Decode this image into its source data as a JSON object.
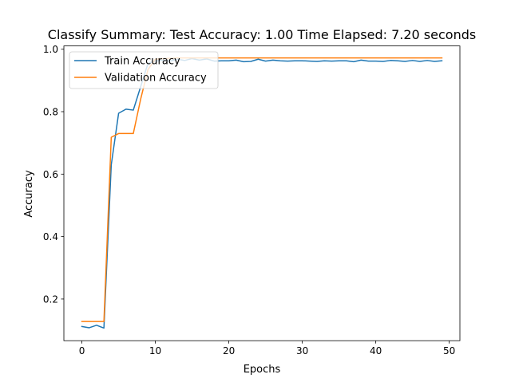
{
  "chart_data": {
    "type": "line",
    "title": "Classify Summary: Test Accuracy: 1.00 Time Elapsed: 7.20 seconds",
    "xlabel": "Epochs",
    "ylabel": "Accuracy",
    "xlim": [
      -2.45,
      51.45
    ],
    "ylim": [
      0.0665,
      1.0105
    ],
    "xticks": [
      0,
      10,
      20,
      30,
      40,
      50
    ],
    "yticks": [
      0.2,
      0.4,
      0.6,
      0.8,
      1.0
    ],
    "ytick_labels": [
      "0.2",
      "0.4",
      "0.6",
      "0.8",
      "1.0"
    ],
    "grid": false,
    "legend_position": "top-left",
    "x": [
      0,
      1,
      2,
      3,
      4,
      5,
      6,
      7,
      8,
      9,
      10,
      11,
      12,
      13,
      14,
      15,
      16,
      17,
      18,
      19,
      20,
      21,
      22,
      23,
      24,
      25,
      26,
      27,
      28,
      29,
      30,
      31,
      32,
      33,
      34,
      35,
      36,
      37,
      38,
      39,
      40,
      41,
      42,
      43,
      44,
      45,
      46,
      47,
      48,
      49
    ],
    "series": [
      {
        "name": "Train Accuracy",
        "color": "#1f77b4",
        "values": [
          0.112,
          0.108,
          0.116,
          0.107,
          0.63,
          0.795,
          0.808,
          0.805,
          0.88,
          0.955,
          0.962,
          0.965,
          0.962,
          0.968,
          0.964,
          0.97,
          0.965,
          0.969,
          0.962,
          0.963,
          0.963,
          0.965,
          0.96,
          0.961,
          0.968,
          0.962,
          0.965,
          0.963,
          0.962,
          0.963,
          0.963,
          0.962,
          0.961,
          0.963,
          0.962,
          0.963,
          0.963,
          0.96,
          0.965,
          0.962,
          0.962,
          0.961,
          0.964,
          0.963,
          0.961,
          0.964,
          0.961,
          0.964,
          0.961,
          0.963
        ]
      },
      {
        "name": "Validation Accuracy",
        "color": "#ff7f0e",
        "values": [
          0.128,
          0.128,
          0.128,
          0.128,
          0.718,
          0.73,
          0.73,
          0.73,
          0.84,
          0.935,
          0.968,
          0.97,
          0.971,
          0.972,
          0.972,
          0.972,
          0.972,
          0.972,
          0.972,
          0.972,
          0.972,
          0.972,
          0.972,
          0.972,
          0.972,
          0.972,
          0.972,
          0.972,
          0.972,
          0.972,
          0.972,
          0.972,
          0.972,
          0.972,
          0.972,
          0.972,
          0.972,
          0.972,
          0.972,
          0.972,
          0.972,
          0.972,
          0.972,
          0.972,
          0.972,
          0.972,
          0.972,
          0.972,
          0.972,
          0.972
        ]
      }
    ]
  }
}
